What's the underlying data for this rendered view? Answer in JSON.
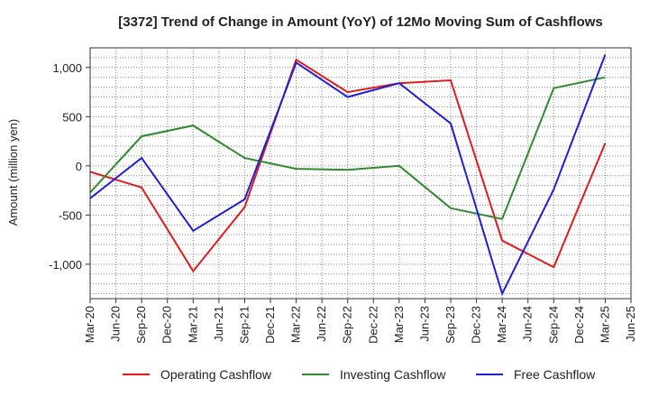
{
  "chart_data": {
    "type": "line",
    "title": "[3372]  Trend of Change in Amount (YoY) of 12Mo Moving Sum of Cashflows",
    "xlabel": "",
    "ylabel": "Amount (million yen)",
    "ylim": [
      -1350,
      1200
    ],
    "yticks": [
      1000,
      500,
      0,
      -500,
      -1000
    ],
    "ytick_labels": [
      "1,000",
      "500",
      "0",
      "-500",
      "-1,000"
    ],
    "categories": [
      "Mar-20",
      "Jun-20",
      "Sep-20",
      "Dec-20",
      "Mar-21",
      "Jun-21",
      "Sep-21",
      "Dec-21",
      "Mar-22",
      "Jun-22",
      "Sep-22",
      "Dec-22",
      "Mar-23",
      "Jun-23",
      "Sep-23",
      "Dec-23",
      "Mar-24",
      "Jun-24",
      "Sep-24",
      "Dec-24",
      "Mar-25",
      "Jun-25"
    ],
    "grid": true,
    "legend_position": "bottom",
    "series": [
      {
        "name": "Operating Cashflow",
        "color": "#e31a1c",
        "values": [
          -60,
          null,
          -220,
          null,
          -1070,
          null,
          -420,
          null,
          1080,
          null,
          750,
          null,
          840,
          null,
          870,
          null,
          -760,
          null,
          -1030,
          null,
          230,
          null
        ]
      },
      {
        "name": "Investing Cashflow",
        "color": "#2e8b2e",
        "values": [
          -270,
          null,
          300,
          null,
          410,
          null,
          80,
          null,
          -30,
          null,
          -40,
          null,
          0,
          null,
          -430,
          null,
          -540,
          null,
          790,
          null,
          900,
          null
        ]
      },
      {
        "name": "Free Cashflow",
        "color": "#1f1fd6",
        "values": [
          -330,
          null,
          80,
          null,
          -660,
          null,
          -340,
          null,
          1050,
          null,
          700,
          null,
          840,
          null,
          430,
          null,
          -1300,
          null,
          -240,
          null,
          1130,
          null
        ]
      }
    ]
  }
}
